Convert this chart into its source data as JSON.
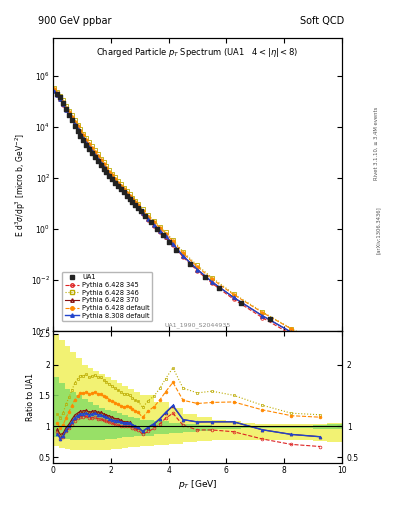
{
  "title_left": "900 GeV ppbar",
  "title_right": "Soft QCD",
  "plot_title": "Charged Particle $p_T$ Spectrum (UA1   $4 < |\\eta| < 8$)",
  "ylabel_main": "E d$^3\\sigma$/dp$^3$ [micro b, GeV$^{-2}$]",
  "ylabel_ratio": "Ratio to UA1",
  "xlabel": "$p_T$ [GeV]",
  "watermark": "UA1_1990_S2044935",
  "right_label_top": "Rivet 3.1.10, ≥ 3.4M events",
  "right_label_bot": "[arXiv:1306.3436]",
  "xlim": [
    0,
    10
  ],
  "ylim_main": [
    0.0001,
    30000000.0
  ],
  "ylim_ratio": [
    0.4,
    2.55
  ],
  "UA1_x": [
    0.15,
    0.25,
    0.35,
    0.45,
    0.55,
    0.65,
    0.75,
    0.85,
    0.95,
    1.05,
    1.15,
    1.25,
    1.35,
    1.45,
    1.55,
    1.65,
    1.75,
    1.85,
    1.95,
    2.05,
    2.15,
    2.25,
    2.35,
    2.45,
    2.55,
    2.65,
    2.75,
    2.85,
    2.95,
    3.05,
    3.2,
    3.4,
    3.6,
    3.8,
    4.0,
    4.25,
    4.75,
    5.25,
    5.75,
    6.5,
    7.5,
    8.5,
    9.5
  ],
  "UA1_y": [
    200000.0,
    150000.0,
    90000.0,
    50000.0,
    30000.0,
    18000.0,
    11000.0,
    7000,
    4500,
    3000,
    2000,
    1400,
    950,
    650,
    460,
    320,
    230,
    165,
    120,
    88,
    65,
    48,
    36,
    27,
    20,
    15,
    11.5,
    8.8,
    6.7,
    5.1,
    3.2,
    1.8,
    1.0,
    0.55,
    0.3,
    0.14,
    0.042,
    0.013,
    0.0045,
    0.0012,
    0.00028,
    7e-05,
    1.8e-05
  ],
  "py6_345_x": [
    0.05,
    0.15,
    0.25,
    0.35,
    0.45,
    0.55,
    0.65,
    0.75,
    0.85,
    0.95,
    1.05,
    1.15,
    1.25,
    1.35,
    1.45,
    1.55,
    1.65,
    1.75,
    1.85,
    1.95,
    2.05,
    2.15,
    2.25,
    2.35,
    2.45,
    2.55,
    2.65,
    2.75,
    2.85,
    2.95,
    3.1,
    3.3,
    3.5,
    3.7,
    3.9,
    4.15,
    4.5,
    5.0,
    5.5,
    6.25,
    7.25,
    8.25,
    9.25
  ],
  "py6_345_y": [
    280000.0,
    180000.0,
    120000.0,
    75000.0,
    46000.0,
    29000.0,
    18500.0,
    12000.0,
    7900,
    5200,
    3450,
    2320,
    1580,
    1080,
    745,
    515,
    358,
    252,
    178,
    128,
    92,
    67,
    49,
    36,
    27,
    20,
    15,
    11.2,
    8.4,
    6.3,
    3.8,
    2.2,
    1.3,
    0.77,
    0.46,
    0.23,
    0.078,
    0.022,
    0.0072,
    0.0017,
    0.00032,
    7e-05,
    1.7e-05
  ],
  "py6_346_x": [
    0.05,
    0.15,
    0.25,
    0.35,
    0.45,
    0.55,
    0.65,
    0.75,
    0.85,
    0.95,
    1.05,
    1.15,
    1.25,
    1.35,
    1.45,
    1.55,
    1.65,
    1.75,
    1.85,
    1.95,
    2.05,
    2.15,
    2.25,
    2.35,
    2.45,
    2.55,
    2.65,
    2.75,
    2.85,
    2.95,
    3.1,
    3.3,
    3.5,
    3.7,
    3.9,
    4.15,
    4.5,
    5.0,
    5.5,
    6.25,
    7.25,
    8.25,
    9.25
  ],
  "py6_346_y": [
    350000.0,
    240000.0,
    170000.0,
    110000.0,
    68000.0,
    44000.0,
    28500.0,
    18700.0,
    12400.0,
    8200,
    5450,
    3680,
    2510,
    1720,
    1190,
    825,
    574,
    402,
    284,
    202,
    145,
    105,
    76,
    56,
    41,
    30.5,
    22.5,
    16.8,
    12.5,
    9.4,
    5.7,
    3.4,
    2.0,
    1.2,
    0.72,
    0.37,
    0.124,
    0.036,
    0.012,
    0.0028,
    0.00054,
    0.00012,
    3e-05
  ],
  "py6_370_x": [
    0.05,
    0.15,
    0.25,
    0.35,
    0.45,
    0.55,
    0.65,
    0.75,
    0.85,
    0.95,
    1.05,
    1.15,
    1.25,
    1.35,
    1.45,
    1.55,
    1.65,
    1.75,
    1.85,
    1.95,
    2.05,
    2.15,
    2.25,
    2.35,
    2.45,
    2.55,
    2.65,
    2.75,
    2.85,
    2.95,
    3.1,
    3.3,
    3.5,
    3.7,
    3.9,
    4.15,
    4.5,
    5.0,
    5.5,
    6.25,
    7.25,
    8.25,
    9.25
  ],
  "py6_370_y": [
    290000.0,
    190000.0,
    130000.0,
    80000.0,
    49000.0,
    31000.0,
    20000.0,
    13000.0,
    8500,
    5600,
    3750,
    2520,
    1720,
    1180,
    815,
    565,
    393,
    276,
    195,
    140,
    101,
    73,
    54,
    39.5,
    29,
    21.5,
    16,
    11.8,
    8.8,
    6.6,
    4.0,
    2.35,
    1.39,
    0.83,
    0.495,
    0.252,
    0.085,
    0.025,
    0.0082,
    0.002,
    0.00038,
    8.6e-05,
    2.1e-05
  ],
  "py6_def_x": [
    0.05,
    0.15,
    0.25,
    0.35,
    0.45,
    0.55,
    0.65,
    0.75,
    0.85,
    0.95,
    1.05,
    1.15,
    1.25,
    1.35,
    1.45,
    1.55,
    1.65,
    1.75,
    1.85,
    1.95,
    2.05,
    2.15,
    2.25,
    2.35,
    2.45,
    2.55,
    2.65,
    2.75,
    2.85,
    2.95,
    3.1,
    3.3,
    3.5,
    3.7,
    3.9,
    4.15,
    4.5,
    5.0,
    5.5,
    6.25,
    7.25,
    8.25,
    9.25
  ],
  "py6_def_y": [
    320000.0,
    210000.0,
    145000.0,
    92000.0,
    57000.0,
    37000.0,
    24000.0,
    15700.0,
    10400.0,
    6900,
    4600,
    3110,
    2130,
    1460,
    1010,
    700,
    487,
    342,
    242,
    172,
    124,
    90,
    65,
    48,
    35.5,
    26.5,
    19.7,
    14.7,
    11.0,
    8.2,
    5.0,
    3.0,
    1.77,
    1.06,
    0.634,
    0.325,
    0.109,
    0.032,
    0.0106,
    0.0026,
    0.00051,
    0.000116,
    2.9e-05
  ],
  "py8_def_x": [
    0.05,
    0.15,
    0.25,
    0.35,
    0.45,
    0.55,
    0.65,
    0.75,
    0.85,
    0.95,
    1.05,
    1.15,
    1.25,
    1.35,
    1.45,
    1.55,
    1.65,
    1.75,
    1.85,
    1.95,
    2.05,
    2.15,
    2.25,
    2.35,
    2.45,
    2.55,
    2.65,
    2.75,
    2.85,
    2.95,
    3.1,
    3.3,
    3.5,
    3.7,
    3.9,
    4.15,
    4.5,
    5.0,
    5.5,
    6.25,
    7.25,
    8.25,
    9.25
  ],
  "py8_def_y": [
    260000.0,
    175000.0,
    120000.0,
    76000.0,
    47000.0,
    30000.0,
    19200.0,
    12500.0,
    8200,
    5400,
    3610,
    2430,
    1660,
    1140,
    788,
    546,
    380,
    267,
    189,
    135,
    97,
    71,
    52,
    38.5,
    28.5,
    21.2,
    15.8,
    11.8,
    8.8,
    6.6,
    4.0,
    2.37,
    1.4,
    0.835,
    0.498,
    0.254,
    0.085,
    0.025,
    0.0082,
    0.002,
    0.00038,
    8.6e-05,
    2.1e-05
  ],
  "colors": {
    "UA1": "#222222",
    "py6_345": "#dd2222",
    "py6_346": "#bbaa00",
    "py6_370": "#881111",
    "py6_def": "#ff8800",
    "py8_def": "#2244cc"
  },
  "band_yellow_edges": [
    0.0,
    0.2,
    0.4,
    0.6,
    0.8,
    1.0,
    1.2,
    1.4,
    1.6,
    1.8,
    2.0,
    2.2,
    2.4,
    2.6,
    2.8,
    3.0,
    3.5,
    4.0,
    4.5,
    5.0,
    5.5,
    6.0,
    6.5,
    7.0,
    7.5,
    8.0,
    8.5,
    9.0,
    9.5,
    10.0
  ],
  "band_yellow_lo": [
    0.68,
    0.65,
    0.63,
    0.62,
    0.61,
    0.61,
    0.61,
    0.61,
    0.61,
    0.62,
    0.63,
    0.64,
    0.65,
    0.66,
    0.67,
    0.68,
    0.7,
    0.72,
    0.74,
    0.76,
    0.78,
    0.78,
    0.78,
    0.78,
    0.78,
    0.78,
    0.78,
    0.76,
    0.74,
    0.72
  ],
  "band_yellow_hi": [
    2.5,
    2.4,
    2.3,
    2.2,
    2.1,
    2.0,
    1.95,
    1.9,
    1.85,
    1.8,
    1.75,
    1.7,
    1.65,
    1.6,
    1.55,
    1.5,
    1.4,
    1.3,
    1.2,
    1.15,
    1.1,
    1.08,
    1.05,
    1.04,
    1.03,
    1.03,
    1.03,
    1.04,
    1.05,
    1.06
  ],
  "band_green_edges": [
    0.0,
    0.2,
    0.4,
    0.6,
    0.8,
    1.0,
    1.2,
    1.4,
    1.6,
    1.8,
    2.0,
    2.2,
    2.4,
    2.6,
    2.8,
    3.0,
    3.5,
    4.0,
    4.5,
    5.0,
    5.5,
    6.0,
    6.5,
    7.0,
    7.5,
    8.0,
    8.5,
    9.0,
    9.5,
    10.0
  ],
  "band_green_lo": [
    0.82,
    0.8,
    0.79,
    0.78,
    0.78,
    0.78,
    0.78,
    0.78,
    0.78,
    0.79,
    0.8,
    0.81,
    0.82,
    0.83,
    0.84,
    0.85,
    0.87,
    0.89,
    0.91,
    0.93,
    0.95,
    0.96,
    0.97,
    0.97,
    0.97,
    0.97,
    0.97,
    0.96,
    0.95,
    0.94
  ],
  "band_green_hi": [
    1.8,
    1.7,
    1.6,
    1.55,
    1.5,
    1.45,
    1.4,
    1.35,
    1.3,
    1.27,
    1.24,
    1.21,
    1.18,
    1.15,
    1.13,
    1.11,
    1.08,
    1.05,
    1.03,
    1.02,
    1.01,
    1.01,
    1.01,
    1.01,
    1.01,
    1.01,
    1.01,
    1.02,
    1.03,
    1.04
  ]
}
